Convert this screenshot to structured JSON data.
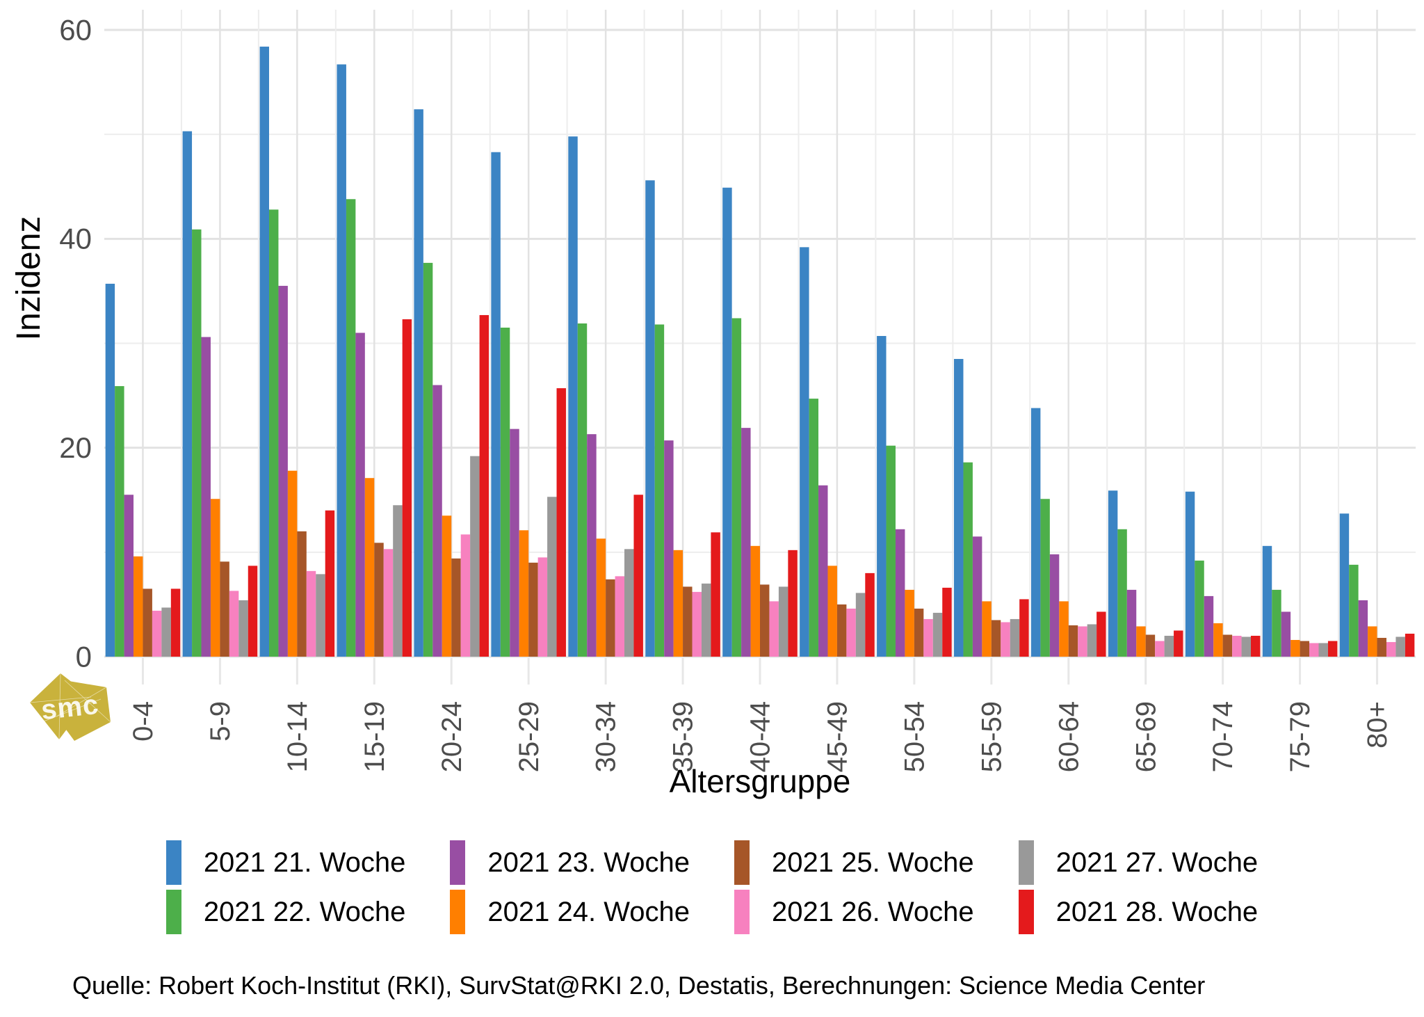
{
  "chart_data": {
    "type": "bar",
    "title": "",
    "xlabel": "Altersgruppe",
    "ylabel": "Inzidenz",
    "ylim": [
      0,
      60
    ],
    "grid": "on",
    "gridline_step": 10,
    "ytick_labels": [
      0,
      20,
      40,
      60
    ],
    "legend_position": "bottom",
    "categories": [
      "0-4",
      "5-9",
      "10-14",
      "15-19",
      "20-24",
      "25-29",
      "30-34",
      "35-39",
      "40-44",
      "45-49",
      "50-54",
      "55-59",
      "60-64",
      "65-69",
      "70-74",
      "75-79",
      "80+"
    ],
    "series": [
      {
        "name": "2021 21. Woche",
        "color": "#3B84C4",
        "values": [
          35.7,
          50.3,
          58.4,
          56.7,
          52.4,
          48.3,
          49.8,
          45.6,
          44.9,
          39.2,
          30.7,
          28.5,
          23.8,
          15.9,
          15.8,
          10.6,
          13.7
        ]
      },
      {
        "name": "2021 22. Woche",
        "color": "#4DAF4A",
        "values": [
          25.9,
          40.9,
          42.8,
          43.8,
          37.7,
          31.5,
          31.9,
          31.8,
          32.4,
          24.7,
          20.2,
          18.6,
          15.1,
          12.2,
          9.2,
          6.4,
          8.8
        ]
      },
      {
        "name": "2021 23. Woche",
        "color": "#984EA3",
        "values": [
          15.5,
          30.6,
          35.5,
          31.0,
          26.0,
          21.8,
          21.3,
          20.7,
          21.9,
          16.4,
          12.2,
          11.5,
          9.8,
          6.4,
          5.8,
          4.3,
          5.4
        ]
      },
      {
        "name": "2021 24. Woche",
        "color": "#FF7F00",
        "values": [
          9.6,
          15.1,
          17.8,
          17.1,
          13.5,
          12.1,
          11.3,
          10.2,
          10.6,
          8.7,
          6.4,
          5.3,
          5.3,
          2.9,
          3.2,
          1.6,
          2.9
        ]
      },
      {
        "name": "2021 25. Woche",
        "color": "#A65628",
        "values": [
          6.5,
          9.1,
          12.0,
          10.9,
          9.4,
          9.0,
          7.4,
          6.7,
          6.9,
          5.0,
          4.6,
          3.5,
          3.0,
          2.1,
          2.1,
          1.5,
          1.8
        ]
      },
      {
        "name": "2021 26. Woche",
        "color": "#F781BF",
        "values": [
          4.4,
          6.3,
          8.2,
          10.3,
          11.7,
          9.5,
          7.7,
          6.2,
          5.3,
          4.6,
          3.6,
          3.3,
          2.9,
          1.5,
          2.0,
          1.3,
          1.4
        ]
      },
      {
        "name": "2021 27. Woche",
        "color": "#999999",
        "values": [
          4.7,
          5.4,
          7.9,
          14.5,
          19.2,
          15.3,
          10.3,
          7.0,
          6.7,
          6.1,
          4.2,
          3.6,
          3.1,
          2.0,
          1.9,
          1.3,
          1.9
        ]
      },
      {
        "name": "2021 28. Woche",
        "color": "#E41A1C",
        "values": [
          6.5,
          8.7,
          14.0,
          32.3,
          32.7,
          25.7,
          15.5,
          11.9,
          10.2,
          8.0,
          6.6,
          5.5,
          4.3,
          2.5,
          2.0,
          1.5,
          2.2
        ]
      }
    ]
  },
  "caption": "Quelle: Robert Koch-Institut (RKI), SurvStat@RKI 2.0, Destatis, Berechnungen: Science Media Center",
  "logo": {
    "text": "smc",
    "color": "#C9B23C"
  },
  "style": {
    "grid_major_color": "#E2E2E2",
    "grid_minor_color": "#EDEDED",
    "tick_color": "#E7E7E7",
    "axis_text_color": "#4d4d4d"
  }
}
